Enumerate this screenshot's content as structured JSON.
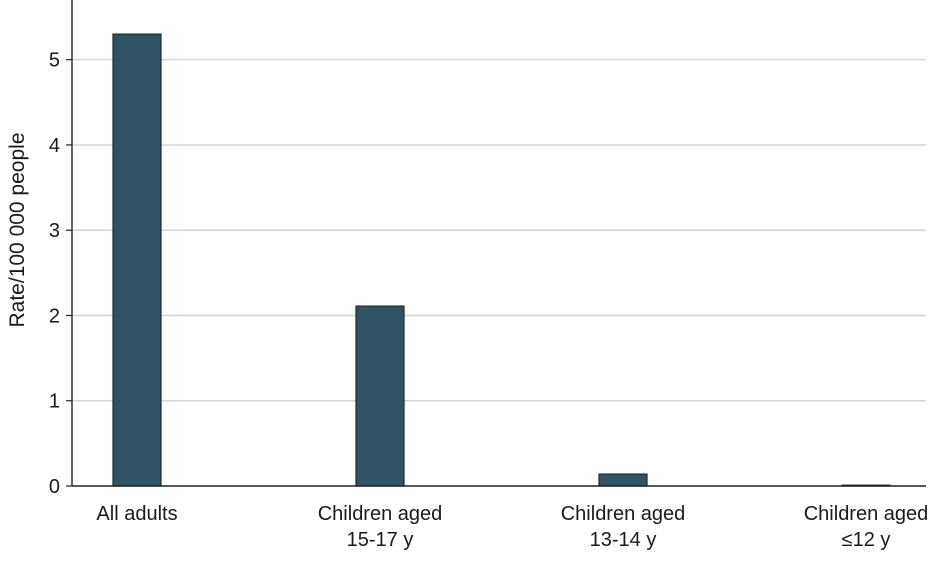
{
  "chart_data": {
    "type": "bar",
    "title": "",
    "xlabel": "",
    "ylabel": "Rate/100 000 people",
    "categories": [
      [
        "All adults"
      ],
      [
        "Children aged",
        "15-17 y"
      ],
      [
        "Children aged",
        "13-14 y"
      ],
      [
        "Children aged",
        "≤12 y"
      ]
    ],
    "values": [
      5.3,
      2.11,
      0.14,
      0.01
    ],
    "ylim": [
      0,
      5.7
    ],
    "yticks": [
      0,
      1,
      2,
      3,
      4,
      5
    ],
    "grid": true,
    "colors": {
      "bar": "#2f5463",
      "bar_edge": "#1e2b31",
      "grid": "#d5d5d5",
      "axis": "#222222",
      "text": "#1a1a1a"
    }
  }
}
